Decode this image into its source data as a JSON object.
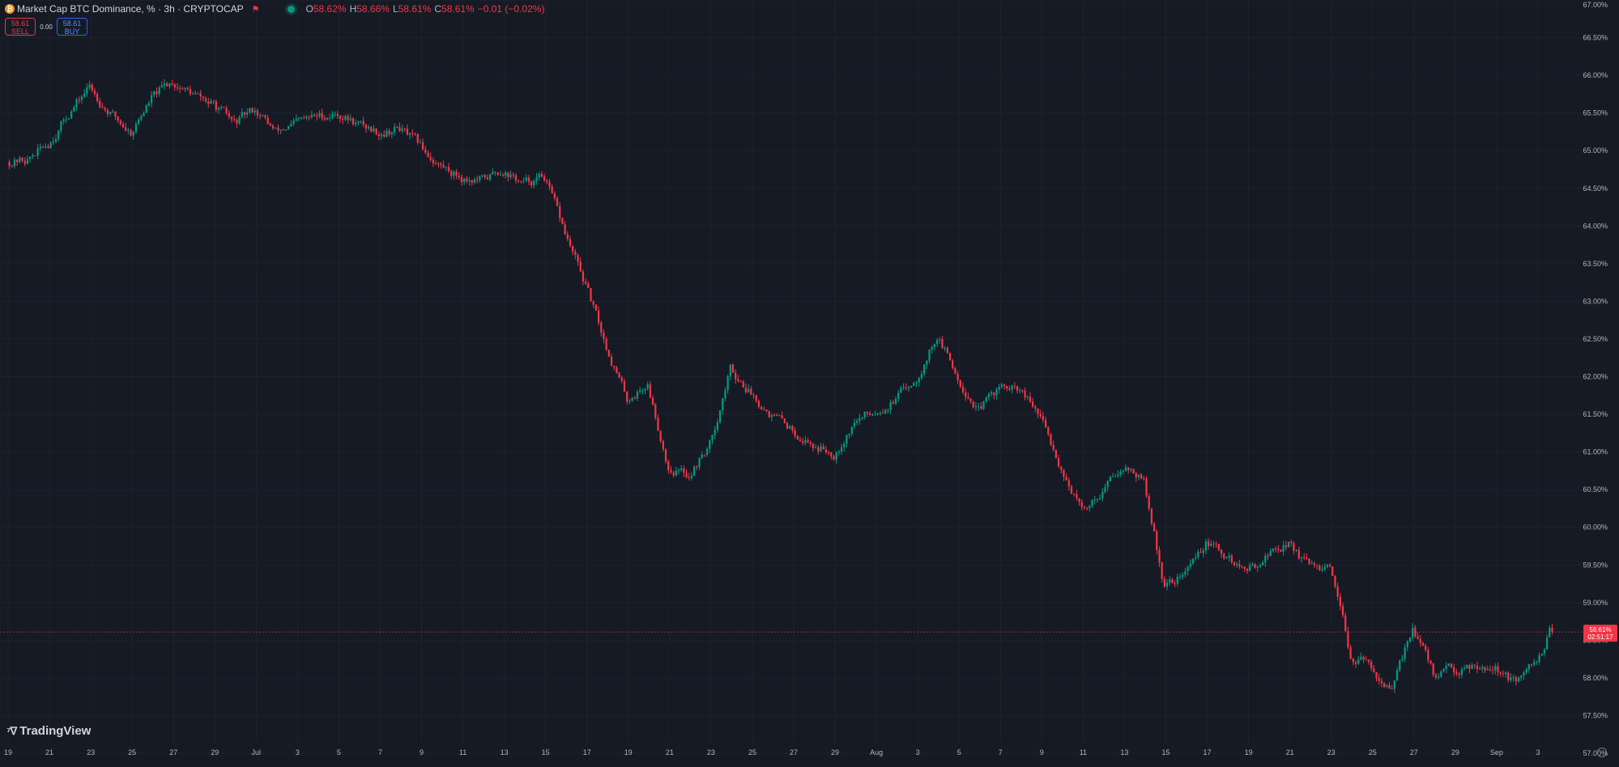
{
  "header": {
    "symbol_icon": "bitcoin-icon",
    "title": "Market Cap BTC Dominance, % · 3h · CRYPTOCAP",
    "ohlc": [
      {
        "k": "O",
        "v": "58.62%"
      },
      {
        "k": "H",
        "v": "58.66%"
      },
      {
        "k": "L",
        "v": "58.61%"
      },
      {
        "k": "C",
        "v": "58.61%"
      },
      {
        "k": "",
        "v": "−0.01 (−0.02%)"
      }
    ]
  },
  "trade": {
    "sell_price": "58.61",
    "sell_label": "SELL",
    "spread": "0.00",
    "buy_price": "58.61",
    "buy_label": "BUY"
  },
  "price_tag": {
    "value": "58.61%",
    "countdown": "02:51:17"
  },
  "branding": {
    "logo_text": "TradingView"
  },
  "colors": {
    "background": "#161a25",
    "up": "#089981",
    "down": "#f23645",
    "grid": "#1e222d",
    "axis_text": "#b2b5be"
  },
  "chart_data": {
    "type": "candlestick",
    "title": "Market Cap BTC Dominance, % · 3h · CRYPTOCAP",
    "ylim": [
      57.0,
      67.0
    ],
    "y_ticks": [
      57.0,
      57.5,
      58.0,
      58.5,
      59.0,
      59.5,
      60.0,
      60.5,
      61.0,
      61.5,
      62.0,
      62.5,
      63.0,
      63.5,
      64.0,
      64.5,
      65.0,
      65.5,
      66.0,
      66.5,
      67.0
    ],
    "y_tick_labels": [
      "57.00%",
      "57.50%",
      "58.00%",
      "58.50%",
      "59.00%",
      "59.50%",
      "60.00%",
      "60.50%",
      "61.00%",
      "61.50%",
      "62.00%",
      "62.50%",
      "63.00%",
      "63.50%",
      "64.00%",
      "64.50%",
      "65.00%",
      "65.50%",
      "66.00%",
      "66.50%",
      "67.00%"
    ],
    "x_tick_labels": [
      "19",
      "21",
      "23",
      "25",
      "27",
      "29",
      "Jul",
      "3",
      "5",
      "7",
      "9",
      "11",
      "13",
      "15",
      "17",
      "19",
      "21",
      "23",
      "25",
      "27",
      "29",
      "Aug",
      "3",
      "5",
      "7",
      "9",
      "11",
      "13",
      "15",
      "17",
      "19",
      "21",
      "23",
      "25",
      "27",
      "29",
      "Sep",
      "3"
    ],
    "x_range": [
      "2023-06-19",
      "2023-09-03"
    ],
    "grid": true,
    "last_value": 58.61,
    "path": [
      [
        "2023-06-19",
        64.85
      ],
      [
        "2023-06-20",
        64.88
      ],
      [
        "2023-06-21",
        65.1
      ],
      [
        "2023-06-22",
        65.5
      ],
      [
        "2023-06-23",
        65.85
      ],
      [
        "2023-06-24",
        65.5
      ],
      [
        "2023-06-25",
        65.25
      ],
      [
        "2023-06-26",
        65.7
      ],
      [
        "2023-06-27",
        65.92
      ],
      [
        "2023-06-28",
        65.75
      ],
      [
        "2023-06-29",
        65.6
      ],
      [
        "2023-06-30",
        65.35
      ],
      [
        "2023-07-01",
        65.55
      ],
      [
        "2023-07-02",
        65.25
      ],
      [
        "2023-07-03",
        65.35
      ],
      [
        "2023-07-04",
        65.45
      ],
      [
        "2023-07-05",
        65.5
      ],
      [
        "2023-07-06",
        65.35
      ],
      [
        "2023-07-07",
        65.25
      ],
      [
        "2023-07-08",
        65.3
      ],
      [
        "2023-07-09",
        65.05
      ],
      [
        "2023-07-10",
        64.8
      ],
      [
        "2023-07-11",
        64.65
      ],
      [
        "2023-07-12",
        64.6
      ],
      [
        "2023-07-13",
        64.75
      ],
      [
        "2023-07-14",
        64.55
      ],
      [
        "2023-07-15",
        64.65
      ],
      [
        "2023-07-16",
        63.9
      ],
      [
        "2023-07-17",
        63.2
      ],
      [
        "2023-07-18",
        62.4
      ],
      [
        "2023-07-19",
        61.7
      ],
      [
        "2023-07-20",
        61.9
      ],
      [
        "2023-07-21",
        60.8
      ],
      [
        "2023-07-22",
        60.7
      ],
      [
        "2023-07-23",
        61.1
      ],
      [
        "2023-07-24",
        62.1
      ],
      [
        "2023-07-25",
        61.8
      ],
      [
        "2023-07-26",
        61.5
      ],
      [
        "2023-07-27",
        61.3
      ],
      [
        "2023-07-28",
        61.1
      ],
      [
        "2023-07-29",
        61.0
      ],
      [
        "2023-07-30",
        61.4
      ],
      [
        "2023-07-31",
        61.55
      ],
      [
        "2023-08-01",
        61.7
      ],
      [
        "2023-08-02",
        62.0
      ],
      [
        "2023-08-03",
        62.55
      ],
      [
        "2023-08-04",
        62.0
      ],
      [
        "2023-08-05",
        61.55
      ],
      [
        "2023-08-06",
        61.85
      ],
      [
        "2023-08-07",
        61.8
      ],
      [
        "2023-08-08",
        61.45
      ],
      [
        "2023-08-09",
        60.8
      ],
      [
        "2023-08-10",
        60.2
      ],
      [
        "2023-08-11",
        60.5
      ],
      [
        "2023-08-12",
        60.85
      ],
      [
        "2023-08-13",
        60.6
      ],
      [
        "2023-08-14",
        59.2
      ],
      [
        "2023-08-15",
        59.4
      ],
      [
        "2023-08-16",
        59.8
      ],
      [
        "2023-08-17",
        59.6
      ],
      [
        "2023-08-18",
        59.4
      ],
      [
        "2023-08-19",
        59.65
      ],
      [
        "2023-08-20",
        59.8
      ],
      [
        "2023-08-21",
        59.45
      ],
      [
        "2023-08-22",
        59.4
      ],
      [
        "2023-08-23",
        58.3
      ],
      [
        "2023-08-24",
        58.15
      ],
      [
        "2023-08-25",
        57.8
      ],
      [
        "2023-08-26",
        58.7
      ],
      [
        "2023-08-27",
        58.05
      ],
      [
        "2023-08-28",
        58.1
      ],
      [
        "2023-08-29",
        58.2
      ],
      [
        "2023-08-30",
        58.15
      ],
      [
        "2023-08-31",
        57.9
      ],
      [
        "2023-09-01",
        58.2
      ],
      [
        "2023-09-01T15:00",
        58.61
      ]
    ]
  }
}
